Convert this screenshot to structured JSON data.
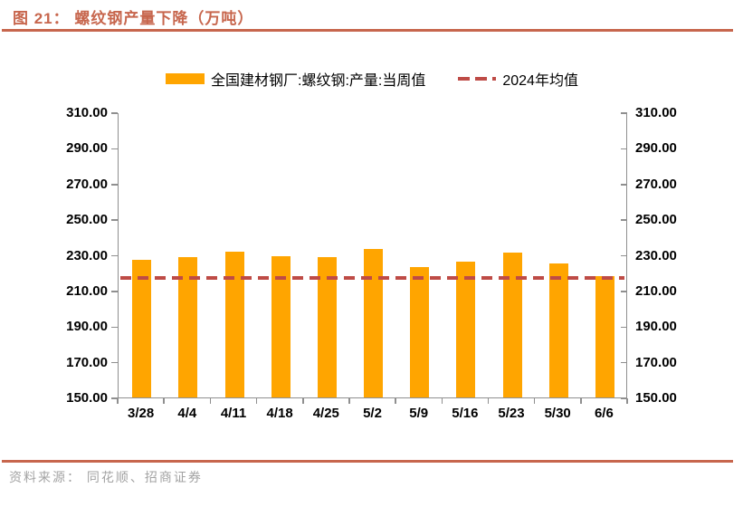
{
  "header": {
    "title": "图 21：  螺纹钢产量下降（万吨）"
  },
  "legend": {
    "series1_label": "全国建材钢厂:螺纹钢:产量:当周值",
    "series2_label": "2024年均值"
  },
  "footer": {
    "source": "资料来源： 同花顺、招商证券"
  },
  "colors": {
    "accent": "#C7664D",
    "bar": "#FFA500",
    "mean_line": "#BE4B46",
    "axis": "#8F8F8F",
    "footer_text": "#A3A3A3"
  },
  "icons": {
    "bar_swatch": "bar-series-swatch",
    "dash_swatch": "mean-line-swatch"
  },
  "chart_data": {
    "type": "bar",
    "title": "螺纹钢产量下降（万吨）",
    "categories": [
      "3/28",
      "4/4",
      "4/11",
      "4/18",
      "4/25",
      "5/2",
      "5/9",
      "5/16",
      "5/23",
      "5/30",
      "6/6"
    ],
    "series": [
      {
        "name": "全国建材钢厂:螺纹钢:产量:当周值",
        "type": "bar",
        "values": [
          227.2,
          228.6,
          232.0,
          229.2,
          228.8,
          233.2,
          223.3,
          226.3,
          231.5,
          225.3,
          218.3
        ]
      },
      {
        "name": "2024年均值",
        "type": "line-constant",
        "value": 217.6
      }
    ],
    "xlabel": "",
    "ylabel": "",
    "ylim": [
      150,
      310
    ],
    "ytick_step": 20,
    "ytick_labels": [
      "310.00",
      "290.00",
      "270.00",
      "250.00",
      "230.00",
      "210.00",
      "190.00",
      "170.00",
      "150.00"
    ],
    "grid": false,
    "dual_axis": true,
    "legend_position": "top-center"
  }
}
